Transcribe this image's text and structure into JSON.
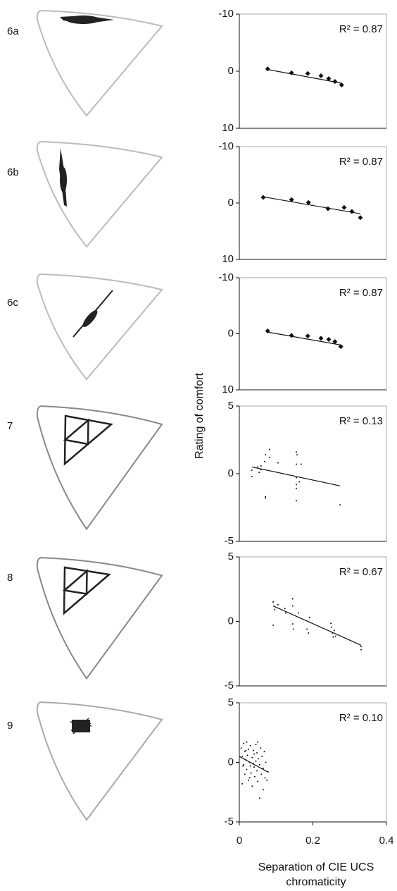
{
  "y_label": "Rating of comfort",
  "x_label": "Separation of CIE UCS chromaticity",
  "chart_data": [
    {
      "type": "scatter",
      "panel_label": "6a",
      "annotation": "R² = 0.87",
      "marker": "diamond",
      "color": "#111",
      "x": [
        0.077,
        0.142,
        0.186,
        0.222,
        0.243,
        0.26,
        0.278
      ],
      "values": [
        -0.4,
        0.3,
        0.4,
        0.8,
        1.3,
        1.8,
        2.4
      ],
      "trendline": {
        "x": [
          0.077,
          0.278
        ],
        "y": [
          -0.3,
          2.1
        ]
      },
      "xlim": [
        0,
        0.4
      ],
      "ylim": [
        10,
        -10
      ],
      "yticks": [
        -10,
        0,
        10
      ]
    },
    {
      "type": "scatter",
      "panel_label": "6b",
      "annotation": "R² = 0.87",
      "marker": "diamond",
      "color": "#111",
      "x": [
        0.065,
        0.142,
        0.188,
        0.241,
        0.285,
        0.306,
        0.329
      ],
      "values": [
        -1.0,
        -0.6,
        -0.1,
        1.0,
        0.8,
        1.5,
        2.6
      ],
      "trendline": {
        "x": [
          0.065,
          0.329
        ],
        "y": [
          -1.1,
          1.9
        ]
      },
      "xlim": [
        0,
        0.4
      ],
      "ylim": [
        10,
        -10
      ],
      "yticks": [
        -10,
        0,
        10
      ]
    },
    {
      "type": "scatter",
      "panel_label": "6c",
      "annotation": "R² = 0.87",
      "marker": "diamond",
      "color": "#111",
      "x": [
        0.077,
        0.142,
        0.186,
        0.222,
        0.243,
        0.26,
        0.276
      ],
      "values": [
        -0.5,
        0.3,
        0.4,
        0.8,
        1.0,
        1.4,
        2.3
      ],
      "trendline": {
        "x": [
          0.077,
          0.276
        ],
        "y": [
          -0.3,
          2.0
        ]
      },
      "xlim": [
        0,
        0.4
      ],
      "ylim": [
        10,
        -10
      ],
      "yticks": [
        -10,
        0,
        10
      ]
    },
    {
      "type": "scatter",
      "panel_label": "7",
      "annotation": "R² = 0.13",
      "marker": "dot",
      "color": "#111",
      "x": [
        0.034,
        0.034,
        0.05,
        0.054,
        0.059,
        0.069,
        0.071,
        0.082,
        0.071,
        0.071,
        0.105,
        0.155,
        0.157,
        0.155,
        0.155,
        0.155,
        0.155,
        0.163,
        0.168,
        0.155,
        0.274,
        0.059,
        0.082
      ],
      "values": [
        -0.2,
        0.26,
        0.5,
        0.1,
        0.3,
        0.9,
        1.4,
        1.8,
        -1.7,
        -1.8,
        0.8,
        1.6,
        1.4,
        0.7,
        -0.3,
        -0.8,
        -1.1,
        -0.6,
        0.7,
        -2.0,
        -2.3,
        0.57,
        1.2
      ],
      "trendline": {
        "x": [
          0.034,
          0.274
        ],
        "y": [
          0.5,
          -0.9
        ]
      },
      "xlim": [
        0,
        0.4
      ],
      "ylim": [
        -5,
        5
      ],
      "yticks": [
        -5,
        0,
        5
      ]
    },
    {
      "type": "scatter",
      "panel_label": "8",
      "annotation": "R² = 0.67",
      "marker": "dot",
      "color": "#111",
      "x": [
        0.092,
        0.092,
        0.105,
        0.124,
        0.126,
        0.145,
        0.145,
        0.145,
        0.147,
        0.161,
        0.184,
        0.188,
        0.191,
        0.249,
        0.251,
        0.253,
        0.255,
        0.262,
        0.258,
        0.331,
        0.331,
        0.096
      ],
      "values": [
        1.5,
        -0.3,
        1.3,
        1.0,
        0.65,
        1.75,
        1.2,
        -0.2,
        -0.6,
        0.65,
        -0.6,
        -0.9,
        0.3,
        -0.15,
        -0.45,
        -0.9,
        -1.2,
        -1.15,
        -0.7,
        -1.95,
        -2.2,
        0.9
      ],
      "trendline": {
        "x": [
          0.092,
          0.331
        ],
        "y": [
          1.2,
          -1.85
        ]
      },
      "xlim": [
        0,
        0.4
      ],
      "ylim": [
        -5,
        5
      ],
      "yticks": [
        -5,
        0,
        5
      ]
    },
    {
      "type": "scatter",
      "panel_label": "9",
      "annotation": "R² = 0.10",
      "marker": "dot",
      "color": "#111",
      "x": [
        0.005,
        0.008,
        0.01,
        0.012,
        0.015,
        0.015,
        0.018,
        0.02,
        0.02,
        0.022,
        0.025,
        0.025,
        0.028,
        0.03,
        0.03,
        0.032,
        0.035,
        0.035,
        0.038,
        0.04,
        0.04,
        0.042,
        0.045,
        0.045,
        0.048,
        0.05,
        0.05,
        0.052,
        0.055,
        0.055,
        0.058,
        0.06,
        0.062,
        0.065,
        0.065,
        0.068,
        0.07,
        0.072,
        0.075,
        0.078,
        0.008,
        0.012,
        0.018,
        0.028,
        0.038,
        0.048
      ],
      "values": [
        1.2,
        0.5,
        -0.3,
        1.6,
        0.9,
        -1.0,
        0.2,
        1.7,
        -0.6,
        0.6,
        -1.5,
        1.1,
        0.0,
        -0.3,
        1.4,
        -0.9,
        0.4,
        -2.0,
        1.0,
        -0.4,
        0.7,
        -1.2,
        1.5,
        0.1,
        -0.7,
        1.7,
        -1.6,
        0.3,
        -3.0,
        -0.2,
        1.2,
        -1.0,
        0.5,
        -0.5,
        -2.3,
        0.9,
        -1.3,
        0.0,
        -1.5,
        -0.8,
        -1.8,
        -0.2,
        1.0,
        -1.3,
        -0.1,
        0.8
      ],
      "trendline": {
        "x": [
          0.0,
          0.077
        ],
        "y": [
          0.5,
          -0.8
        ]
      },
      "xlim": [
        0,
        0.4
      ],
      "ylim": [
        -5,
        5
      ],
      "yticks": [
        -5,
        0,
        5
      ],
      "xticks": [
        0,
        0.2,
        0.4
      ]
    }
  ]
}
